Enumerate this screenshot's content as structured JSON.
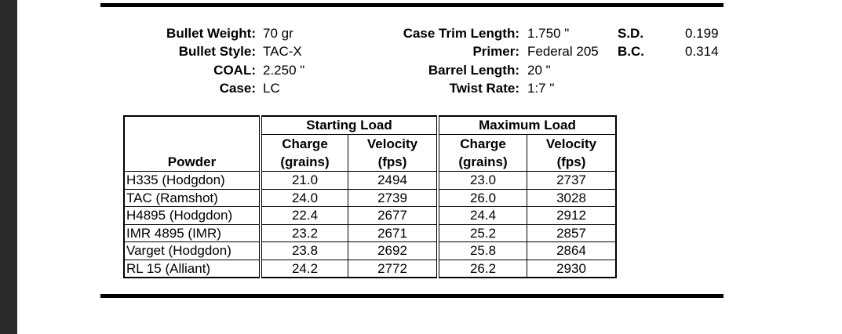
{
  "specs": {
    "left": [
      {
        "label": "Bullet Weight:",
        "value": "70 gr"
      },
      {
        "label": "Bullet Style:",
        "value": "TAC-X"
      },
      {
        "label": "COAL:",
        "value": "2.250 \""
      },
      {
        "label": "Case:",
        "value": "LC"
      }
    ],
    "middle": [
      {
        "label": "Case Trim Length:",
        "value": "1.750 \""
      },
      {
        "label": "Primer:",
        "value": "Federal 205"
      },
      {
        "label": "Barrel Length:",
        "value": "20 \""
      },
      {
        "label": "Twist Rate:",
        "value": "1:7 \""
      }
    ],
    "right": [
      {
        "label": "S.D.",
        "value": "0.199"
      },
      {
        "label": "B.C.",
        "value": "0.314"
      }
    ]
  },
  "table": {
    "groups": [
      "Starting Load",
      "Maximum Load"
    ],
    "columns": [
      "Powder",
      "Charge\n(grains)",
      "Velocity\n(fps)",
      "Charge\n(grains)",
      "Velocity\n(fps)"
    ],
    "rows": [
      [
        "H335 (Hodgdon)",
        "21.0",
        "2494",
        "23.0",
        "2737"
      ],
      [
        "TAC (Ramshot)",
        "24.0",
        "2739",
        "26.0",
        "3028"
      ],
      [
        "H4895 (Hodgdon)",
        "22.4",
        "2677",
        "24.4",
        "2912"
      ],
      [
        "IMR 4895 (IMR)",
        "23.2",
        "2671",
        "25.2",
        "2857"
      ],
      [
        "Varget (Hodgdon)",
        "23.8",
        "2692",
        "25.8",
        "2864"
      ],
      [
        "RL 15 (Alliant)",
        "24.2",
        "2772",
        "26.2",
        "2930"
      ]
    ]
  }
}
